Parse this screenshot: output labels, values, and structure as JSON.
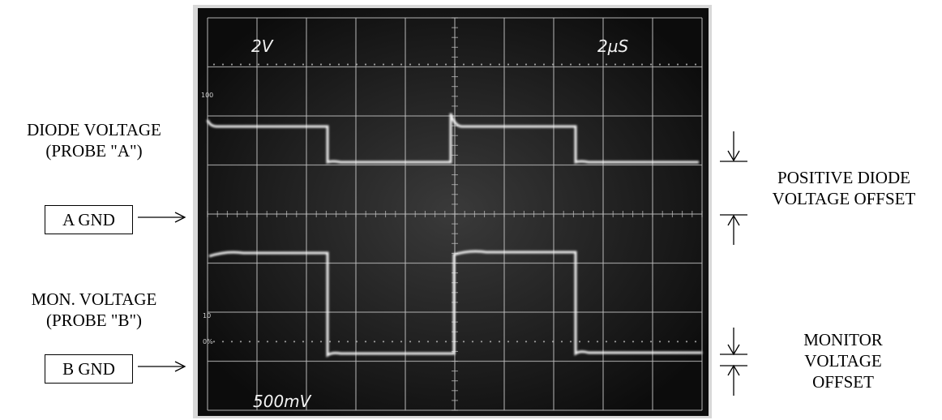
{
  "left_labels": {
    "diode_voltage": {
      "line1": "DIODE VOLTAGE",
      "line2": "(PROBE \"A\")"
    },
    "mon_voltage": {
      "line1": "MON. VOLTAGE",
      "line2": "(PROBE \"B\")"
    },
    "a_gnd": "A GND",
    "b_gnd": "B GND"
  },
  "right_labels": {
    "positive_offset": {
      "line1": "POSITIVE DIODE",
      "line2": "VOLTAGE OFFSET"
    },
    "monitor_offset": {
      "line1": "MONITOR",
      "line2": "VOLTAGE",
      "line3": "OFFSET"
    }
  },
  "screen": {
    "ch1_scale": "2V",
    "timebase": "2µS",
    "ch2_scale": "500mV",
    "mark_100": "100",
    "mark_10": "10",
    "mark_0": "0%"
  },
  "colors": {
    "screen_bg": "#151515",
    "grid": "#bdbdbd",
    "trace": "#f4f4f4"
  }
}
